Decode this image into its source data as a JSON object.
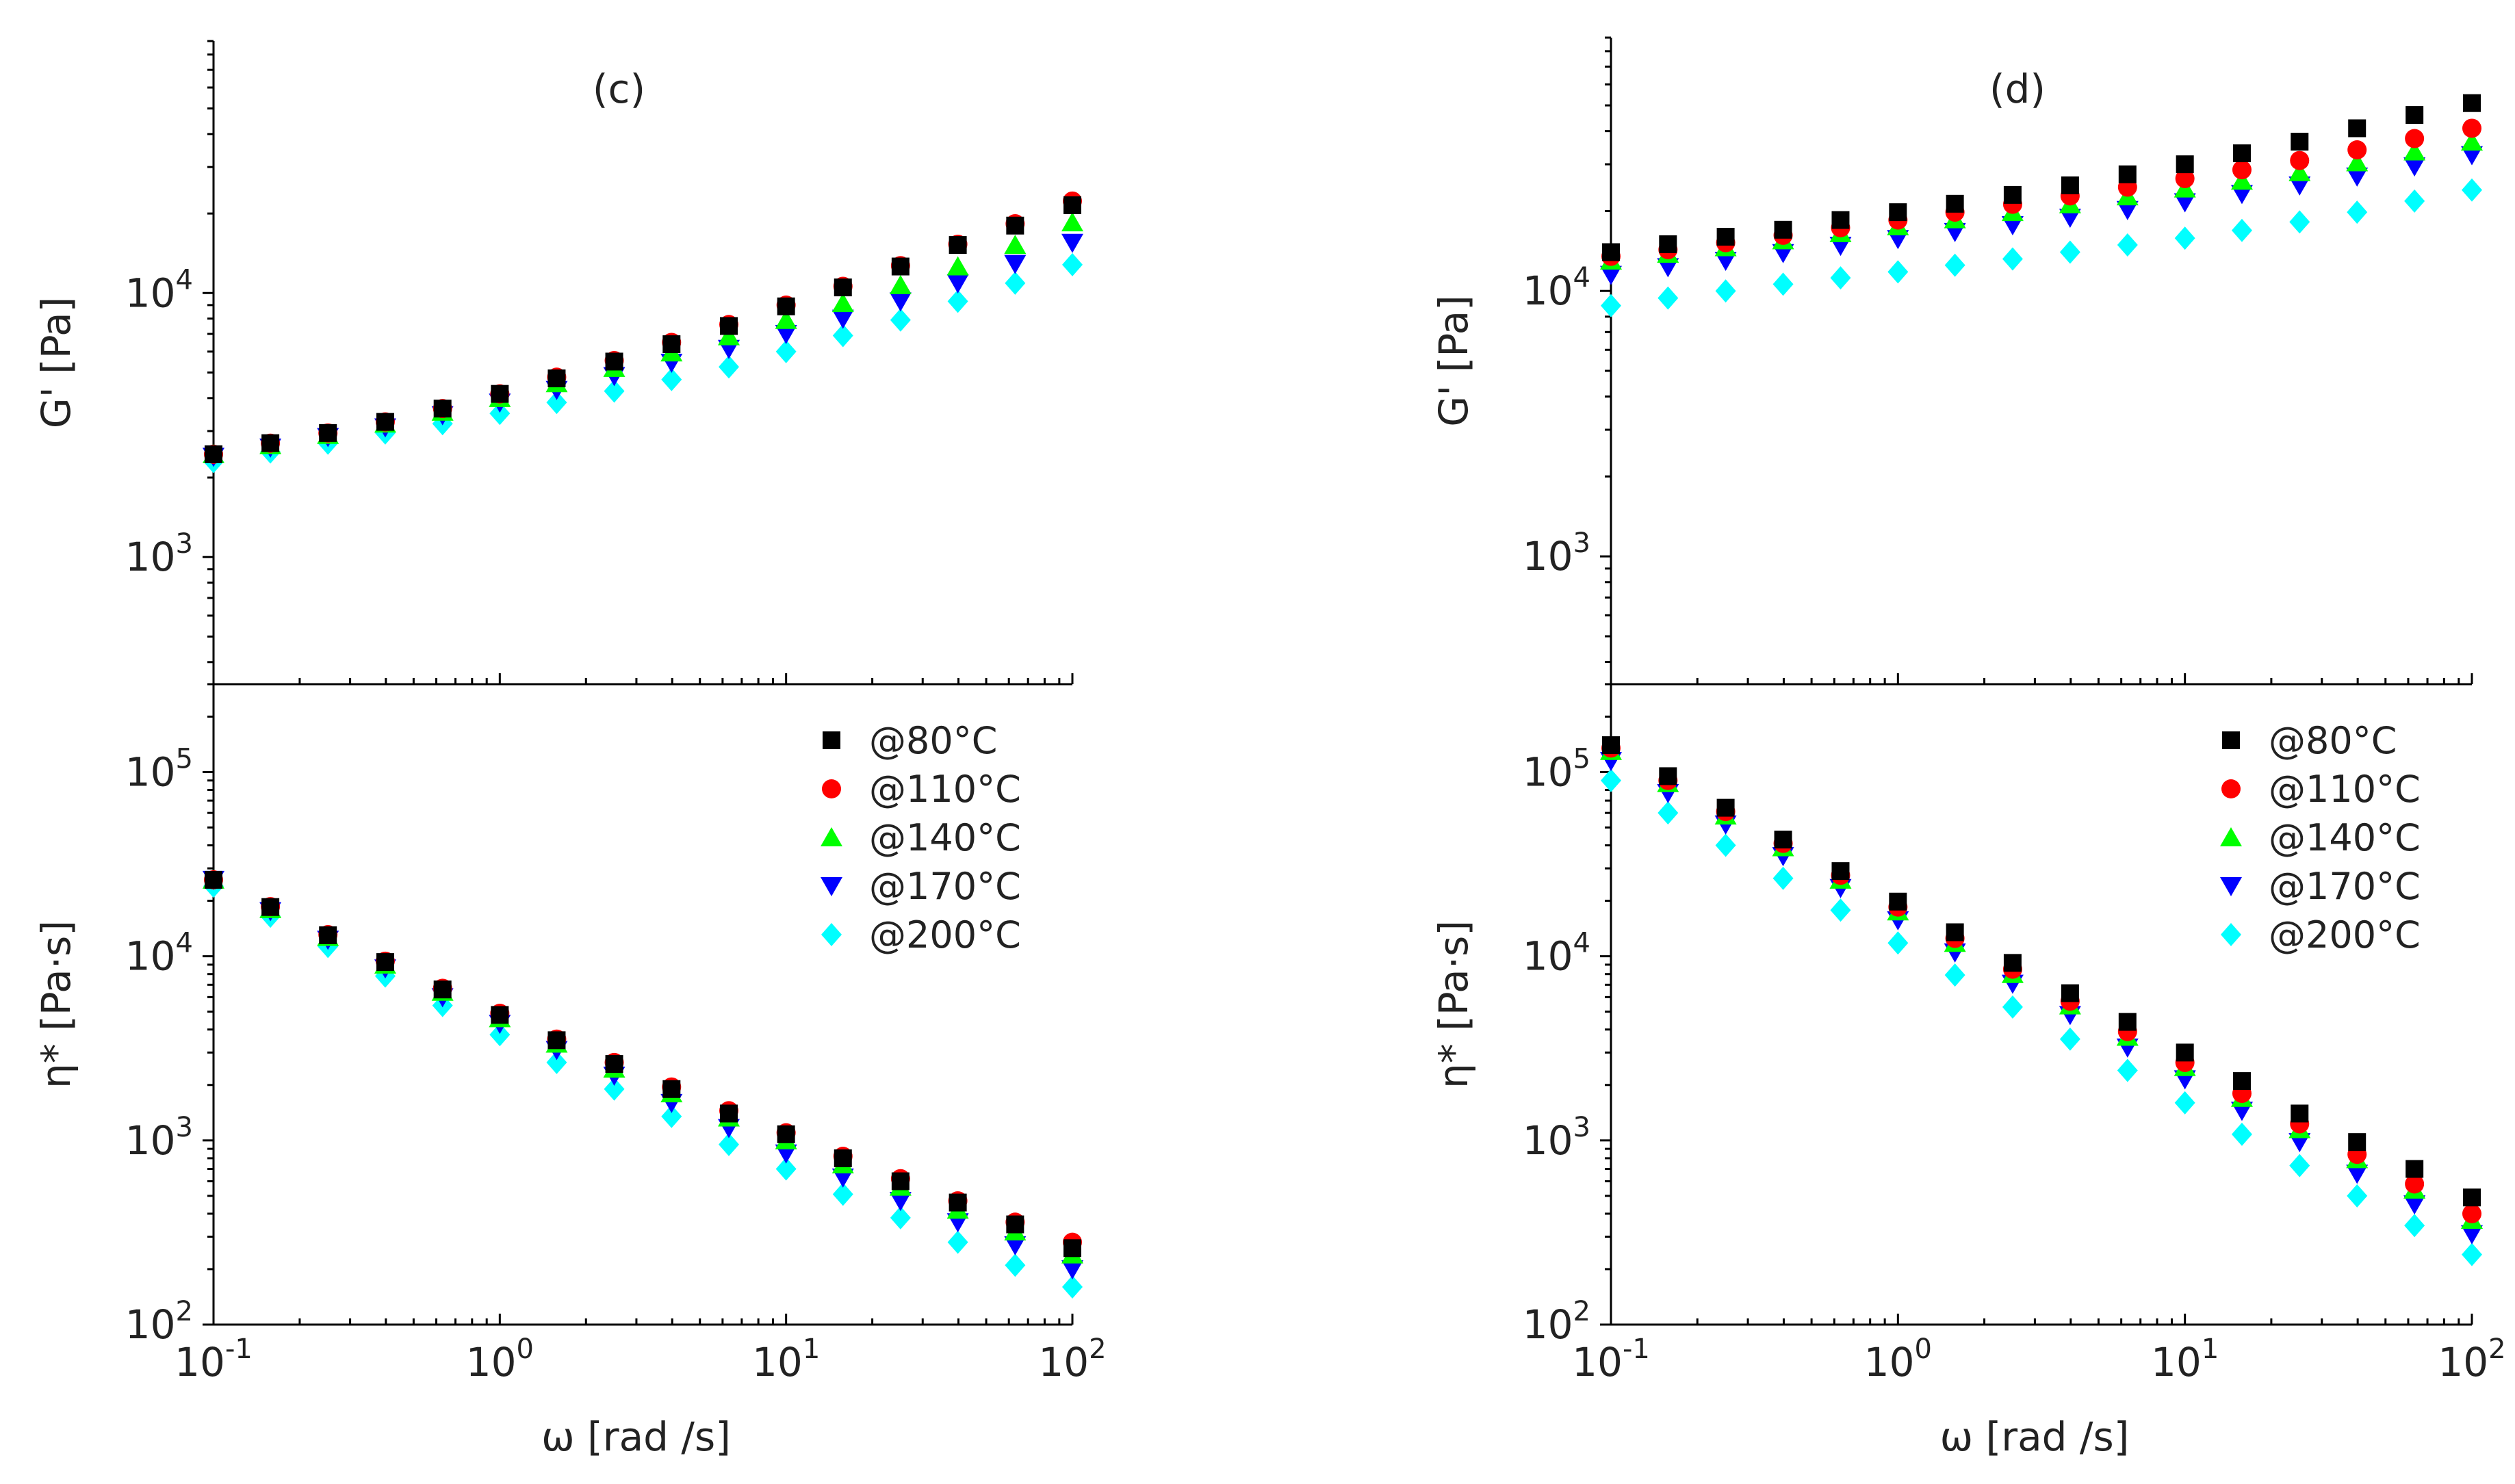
{
  "figure": {
    "x_axis_title": "ω [rad /s]",
    "x_range": [
      0.1,
      100
    ],
    "x_ticks": [
      {
        "base": "10",
        "exp": "-1",
        "value": 0.1
      },
      {
        "base": "10",
        "exp": "0",
        "value": 1
      },
      {
        "base": "10",
        "exp": "1",
        "value": 10
      },
      {
        "base": "10",
        "exp": "2",
        "value": 100
      }
    ]
  },
  "legend": [
    {
      "label": "@80°C",
      "color": "#000000",
      "marker": "square"
    },
    {
      "label": "@110°C",
      "color": "#ff0000",
      "marker": "circle"
    },
    {
      "label": "@140°C",
      "color": "#00ff00",
      "marker": "triangle-up"
    },
    {
      "label": "@170°C",
      "color": "#0000ff",
      "marker": "triangle-down"
    },
    {
      "label": "@200°C",
      "color": "#00ffff",
      "marker": "diamond"
    }
  ],
  "chart_data": [
    {
      "id": "c-top",
      "type": "scatter",
      "panel": "(c)",
      "ylabel": "G' [Pa]",
      "xscale": "log",
      "yscale": "log",
      "xlim": [
        0.1,
        100
      ],
      "ylim": [
        330,
        90000
      ],
      "yticks": [
        {
          "base": "10",
          "exp": "3",
          "value": 1000
        },
        {
          "base": "10",
          "exp": "4",
          "value": 10000
        }
      ],
      "x": [
        0.1,
        0.158,
        0.251,
        0.398,
        0.631,
        1,
        1.58,
        2.51,
        3.98,
        6.31,
        10,
        15.8,
        25.1,
        39.8,
        63.1,
        100
      ],
      "series": [
        {
          "name": "@80°C",
          "values": [
            2450,
            2700,
            2950,
            3250,
            3650,
            4150,
            4750,
            5500,
            6400,
            7500,
            8900,
            10500,
            12600,
            15200,
            18000,
            21500
          ]
        },
        {
          "name": "@110°C",
          "values": [
            2450,
            2700,
            2950,
            3250,
            3650,
            4150,
            4800,
            5550,
            6500,
            7600,
            9000,
            10600,
            12700,
            15300,
            18300,
            22300
          ]
        },
        {
          "name": "@140°C",
          "values": [
            2450,
            2650,
            2900,
            3200,
            3550,
            4000,
            4550,
            5200,
            5950,
            6850,
            7900,
            9150,
            10700,
            12600,
            15200,
            18500
          ]
        },
        {
          "name": "@170°C",
          "values": [
            2400,
            2600,
            2850,
            3100,
            3450,
            3850,
            4300,
            4850,
            5450,
            6150,
            7000,
            8000,
            9300,
            10900,
            12900,
            15500
          ]
        },
        {
          "name": "@200°C",
          "values": [
            2300,
            2500,
            2700,
            2950,
            3200,
            3500,
            3850,
            4250,
            4700,
            5250,
            6000,
            6900,
            7900,
            9300,
            10900,
            12800
          ]
        }
      ]
    },
    {
      "id": "c-bottom",
      "type": "scatter",
      "ylabel": "η* [Pa·s]",
      "xscale": "log",
      "yscale": "log",
      "xlim": [
        0.1,
        100
      ],
      "ylim": [
        100,
        300000
      ],
      "yticks": [
        {
          "base": "10",
          "exp": "2",
          "value": 100
        },
        {
          "base": "10",
          "exp": "3",
          "value": 1000
        },
        {
          "base": "10",
          "exp": "4",
          "value": 10000
        },
        {
          "base": "10",
          "exp": "5",
          "value": 100000
        }
      ],
      "x": [
        0.1,
        0.158,
        0.251,
        0.398,
        0.631,
        1,
        1.58,
        2.51,
        3.98,
        6.31,
        10,
        15.8,
        25.1,
        39.8,
        63.1,
        100
      ],
      "series": [
        {
          "name": "@80°C",
          "values": [
            26000,
            18500,
            13000,
            9300,
            6600,
            4800,
            3500,
            2600,
            1900,
            1400,
            1080,
            800,
            600,
            460,
            350,
            260
          ]
        },
        {
          "name": "@110°C",
          "values": [
            26000,
            18600,
            13100,
            9400,
            6700,
            4900,
            3550,
            2650,
            1950,
            1450,
            1100,
            820,
            620,
            470,
            360,
            280
          ]
        },
        {
          "name": "@140°C",
          "values": [
            26000,
            18000,
            12700,
            9000,
            6400,
            4600,
            3350,
            2450,
            1800,
            1330,
            1000,
            740,
            560,
            420,
            320,
            240
          ]
        },
        {
          "name": "@170°C",
          "values": [
            26000,
            17600,
            12300,
            8600,
            6000,
            4300,
            3100,
            2250,
            1600,
            1170,
            850,
            630,
            470,
            360,
            270,
            200
          ]
        },
        {
          "name": "@200°C",
          "values": [
            24000,
            16500,
            11300,
            7800,
            5400,
            3750,
            2650,
            1900,
            1350,
            950,
            700,
            510,
            380,
            280,
            210,
            160
          ]
        }
      ]
    },
    {
      "id": "d-top",
      "type": "scatter",
      "panel": "(d)",
      "ylabel": "G' [Pa]",
      "xscale": "log",
      "yscale": "log",
      "xlim": [
        0.1,
        100
      ],
      "ylim": [
        330,
        90000
      ],
      "yticks": [
        {
          "base": "10",
          "exp": "3",
          "value": 1000
        },
        {
          "base": "10",
          "exp": "4",
          "value": 10000
        }
      ],
      "x": [
        0.1,
        0.158,
        0.251,
        0.398,
        0.631,
        1,
        1.58,
        2.51,
        3.98,
        6.31,
        10,
        15.8,
        25.1,
        39.8,
        63.1,
        100
      ],
      "series": [
        {
          "name": "@80°C",
          "values": [
            14000,
            15000,
            16000,
            17000,
            18500,
            19800,
            21300,
            23000,
            25000,
            27500,
            30000,
            33000,
            36500,
            41000,
            46000,
            51000
          ]
        },
        {
          "name": "@110°C",
          "values": [
            13500,
            14300,
            15200,
            16200,
            17300,
            18500,
            19800,
            21200,
            22800,
            24600,
            26500,
            28600,
            31000,
            34000,
            37500,
            41000
          ]
        },
        {
          "name": "@140°C",
          "values": [
            13000,
            13800,
            14600,
            15500,
            16500,
            17500,
            18600,
            19800,
            21200,
            22700,
            24300,
            26000,
            28000,
            30500,
            33500,
            36500
          ]
        },
        {
          "name": "@170°C",
          "values": [
            11500,
            12300,
            13000,
            13900,
            14800,
            15700,
            16700,
            17700,
            18900,
            20200,
            21600,
            23200,
            25000,
            27000,
            29500,
            32500
          ]
        },
        {
          "name": "@200°C",
          "values": [
            8800,
            9400,
            10000,
            10600,
            11200,
            11800,
            12500,
            13200,
            14000,
            14900,
            15800,
            16900,
            18200,
            19800,
            21800,
            24000
          ]
        }
      ]
    },
    {
      "id": "d-bottom",
      "type": "scatter",
      "ylabel": "η* [Pa·s]",
      "xscale": "log",
      "yscale": "log",
      "xlim": [
        0.1,
        100
      ],
      "ylim": [
        100,
        300000
      ],
      "yticks": [
        {
          "base": "10",
          "exp": "2",
          "value": 100
        },
        {
          "base": "10",
          "exp": "3",
          "value": 1000
        },
        {
          "base": "10",
          "exp": "4",
          "value": 10000
        },
        {
          "base": "10",
          "exp": "5",
          "value": 100000
        }
      ],
      "x": [
        0.1,
        0.158,
        0.251,
        0.398,
        0.631,
        1,
        1.58,
        2.51,
        3.98,
        6.31,
        10,
        15.8,
        25.1,
        39.8,
        63.1,
        100
      ],
      "series": [
        {
          "name": "@80°C",
          "values": [
            140000,
            95000,
            64000,
            43000,
            29000,
            19800,
            13500,
            9200,
            6300,
            4400,
            3000,
            2100,
            1400,
            980,
            700,
            490
          ]
        },
        {
          "name": "@110°C",
          "values": [
            135000,
            90000,
            61000,
            41000,
            27500,
            18500,
            12500,
            8500,
            5700,
            3900,
            2650,
            1800,
            1230,
            840,
            580,
            400
          ]
        },
        {
          "name": "@140°C",
          "values": [
            130000,
            87000,
            58000,
            39000,
            26000,
            17500,
            11800,
            8000,
            5400,
            3650,
            2500,
            1700,
            1150,
            790,
            540,
            370
          ]
        },
        {
          "name": "@170°C",
          "values": [
            115000,
            77000,
            52000,
            35000,
            23500,
            15700,
            10500,
            7100,
            4800,
            3200,
            2150,
            1450,
            980,
            660,
            450,
            310
          ]
        },
        {
          "name": "@200°C",
          "values": [
            90000,
            60000,
            40000,
            26500,
            17800,
            11800,
            7900,
            5300,
            3550,
            2400,
            1600,
            1080,
            730,
            500,
            345,
            240
          ]
        }
      ]
    }
  ]
}
